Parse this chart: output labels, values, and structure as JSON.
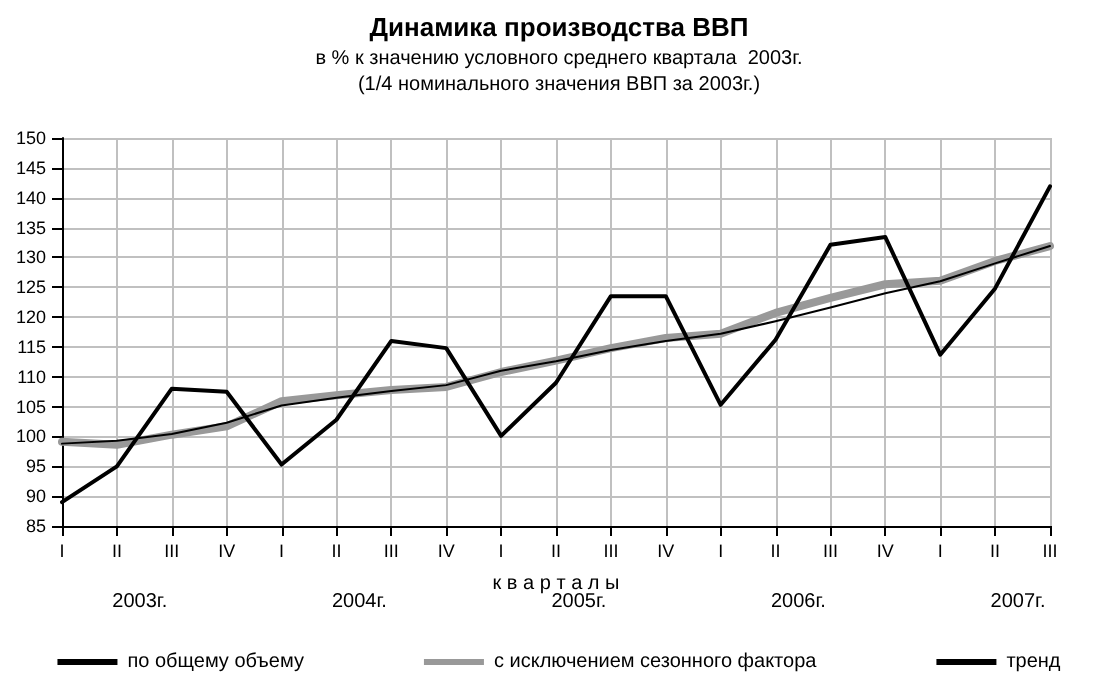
{
  "chart_data": {
    "type": "line",
    "title": "Динамика производства ВВП",
    "subtitle": "в % к значению условного среднего квартала  2003г.\n(1/4 номинального значения ВВП за 2003г.)",
    "xlabel": "к в а р т а л ы",
    "categories": [
      "I",
      "II",
      "III",
      "IV",
      "I",
      "II",
      "III",
      "IV",
      "I",
      "II",
      "III",
      "IV",
      "I",
      "II",
      "III",
      "IV",
      "I",
      "II",
      "III"
    ],
    "series": [
      {
        "name": "по общему объему",
        "color": "#000000",
        "values": [
          89,
          95,
          108,
          107.5,
          95.3,
          102.8,
          116,
          114.8,
          100.1,
          109,
          123.5,
          123.5,
          105.3,
          116.2,
          132.1,
          133.4,
          113.7,
          124.8,
          141.9
        ]
      },
      {
        "name": "с исключением сезонного фактора",
        "color": "#999999",
        "values": [
          99.1,
          98.6,
          100.3,
          101.7,
          105.9,
          106.9,
          107.8,
          108.3,
          110.8,
          112.7,
          114.8,
          116.5,
          117.2,
          120.7,
          123.2,
          125.5,
          126.1,
          129.4,
          131.9
        ]
      },
      {
        "name": "тренд",
        "color": "#000000",
        "values": [
          98.8,
          99.3,
          100.4,
          102.3,
          105.2,
          106.5,
          107.6,
          108.6,
          111,
          112.6,
          114.5,
          116,
          117.2,
          119.3,
          121.6,
          124,
          126,
          129,
          131.9
        ]
      }
    ],
    "annotations": [
      "2003г.",
      "2004г.",
      "2005г.",
      "2006г.",
      "2007г."
    ],
    "ylim": [
      85,
      150
    ],
    "yticks": [
      85,
      90,
      95,
      100,
      105,
      110,
      115,
      120,
      125,
      130,
      135,
      140,
      145,
      150
    ],
    "grid": true,
    "legend": "bottom",
    "marker": "none",
    "line_style": "solid"
  }
}
